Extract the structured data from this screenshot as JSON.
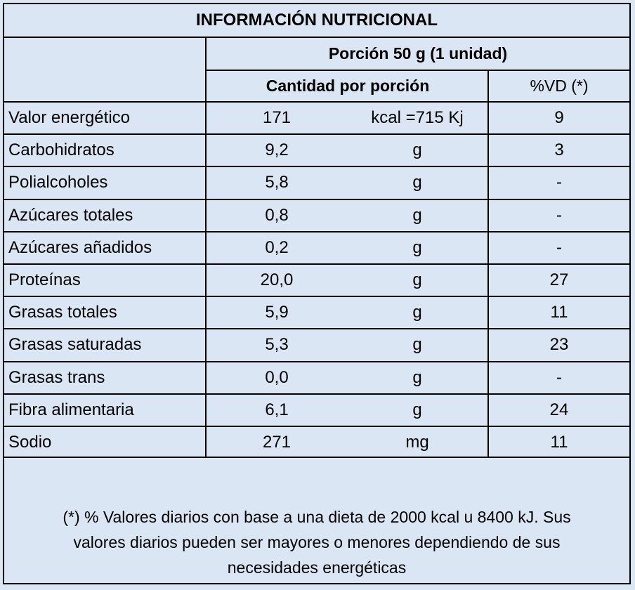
{
  "title": "INFORMACIÓN NUTRICIONAL",
  "portion": "Porción 50 g (1 unidad)",
  "header": {
    "quantity": "Cantidad por porción",
    "vd": "%VD (*)"
  },
  "rows": [
    {
      "name": "Valor energético",
      "amount": "171",
      "unit": "kcal =715 Kj",
      "vd": "9"
    },
    {
      "name": "Carbohidratos",
      "amount": "9,2",
      "unit": "g",
      "vd": "3"
    },
    {
      "name": "Polialcoholes",
      "amount": "5,8",
      "unit": "g",
      "vd": "-"
    },
    {
      "name": "Azúcares totales",
      "amount": "0,8",
      "unit": "g",
      "vd": "-"
    },
    {
      "name": "Azúcares añadidos",
      "amount": "0,2",
      "unit": "g",
      "vd": "-"
    },
    {
      "name": "Proteínas",
      "amount": "20,0",
      "unit": "g",
      "vd": "27"
    },
    {
      "name": "Grasas totales",
      "amount": "5,9",
      "unit": "g",
      "vd": "11"
    },
    {
      "name": "Grasas saturadas",
      "amount": "5,3",
      "unit": "g",
      "vd": "23"
    },
    {
      "name": "Grasas trans",
      "amount": "0,0",
      "unit": "g",
      "vd": "-"
    },
    {
      "name": "Fibra alimentaria",
      "amount": "6,1",
      "unit": "g",
      "vd": "24"
    },
    {
      "name": "Sodio",
      "amount": "271",
      "unit": "mg",
      "vd": "11"
    }
  ],
  "footnote": {
    "line1": "(*) % Valores diarios con base a una dieta de 2000 kcal u 8400 kJ. Sus",
    "line2": "valores diarios pueden ser mayores o menores dependiendo de sus",
    "line3": "necesidades energéticas"
  }
}
